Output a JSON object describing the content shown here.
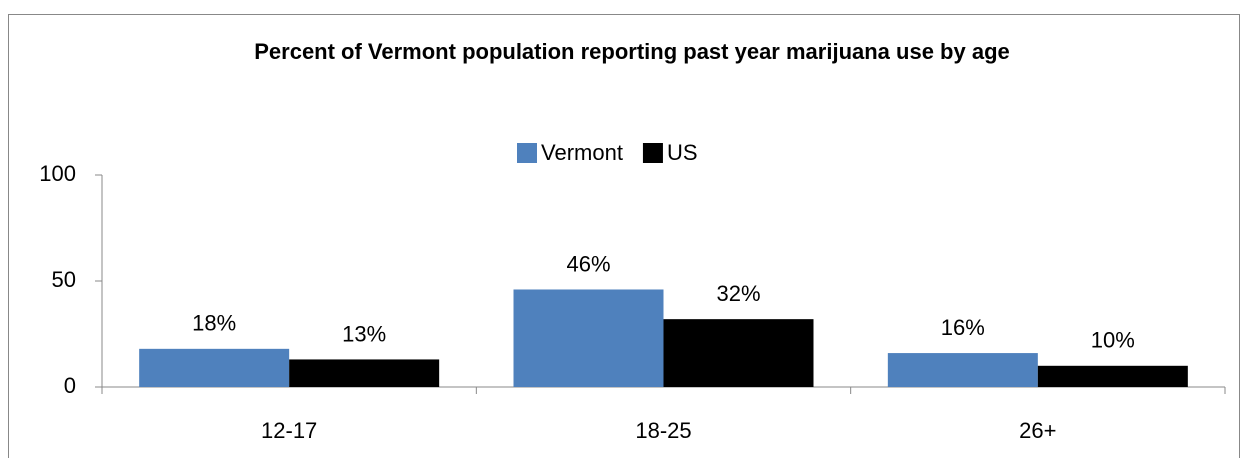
{
  "chart_data": {
    "type": "bar",
    "title": "Percent of Vermont population reporting past year marijuana use by age",
    "categories": [
      "12-17",
      "18-25",
      "26+"
    ],
    "series": [
      {
        "name": "Vermont",
        "color": "#4f81bd",
        "values": [
          18,
          46,
          16
        ],
        "value_labels": [
          "18%",
          "46%",
          "16%"
        ]
      },
      {
        "name": "US",
        "color": "#000000",
        "values": [
          13,
          32,
          10
        ],
        "value_labels": [
          "13%",
          "32%",
          "10%"
        ]
      }
    ],
    "ylim": [
      0,
      100
    ],
    "yticks": [
      0,
      50,
      100
    ],
    "grid": false,
    "legend": "top"
  }
}
